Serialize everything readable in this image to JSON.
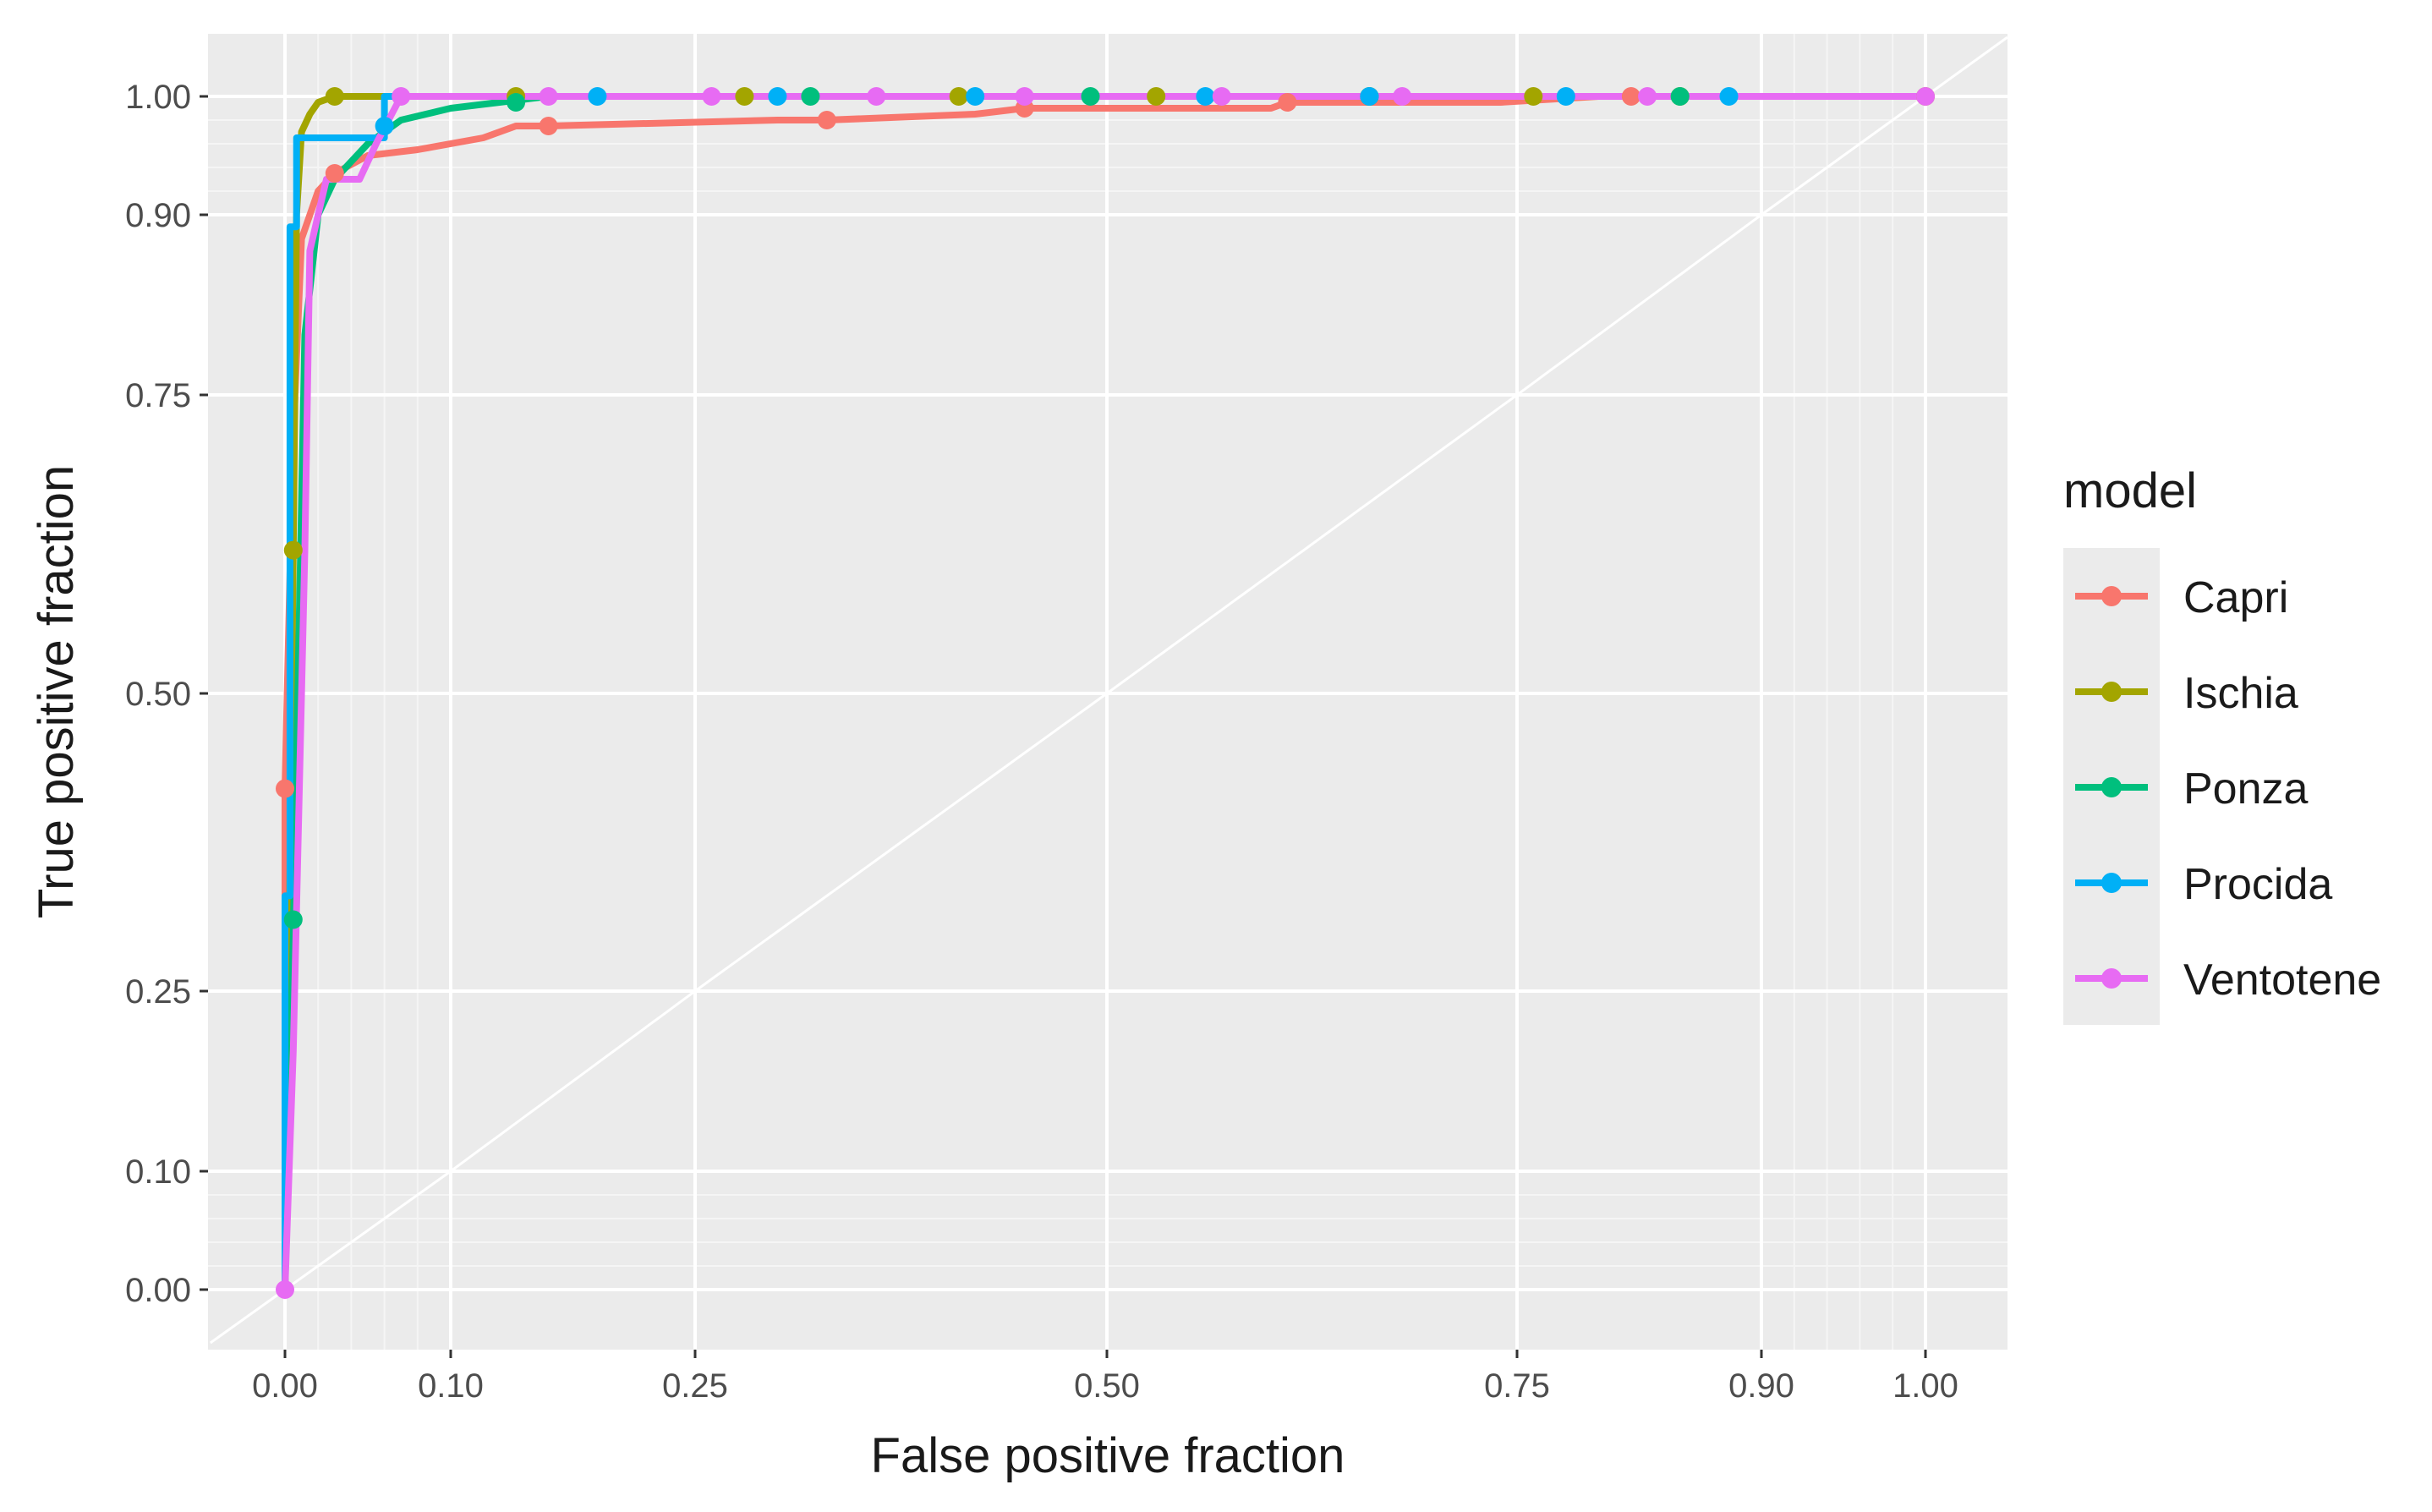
{
  "chart_data": {
    "type": "line",
    "xlabel": "False positive fraction",
    "ylabel": "True positive fraction",
    "xlim": [
      -0.045,
      1.05
    ],
    "ylim": [
      -0.045,
      1.05
    ],
    "axis_scale": "probit-style (breaks dense near 0 and 1)",
    "x_ticks": [
      0.0,
      0.1,
      0.25,
      0.5,
      0.75,
      0.9,
      1.0
    ],
    "x_tick_labels": [
      "0.00",
      "0.10",
      "0.25",
      "0.50",
      "0.75",
      "0.90",
      "1.00"
    ],
    "y_ticks": [
      0.0,
      0.1,
      0.25,
      0.5,
      0.75,
      0.9,
      1.0
    ],
    "y_tick_labels": [
      "0.00",
      "0.10",
      "0.25",
      "0.50",
      "0.75",
      "0.90",
      "1.00"
    ],
    "grid": true,
    "reference_line": "diagonal y = x",
    "legend": {
      "title": "model",
      "position": "right"
    },
    "series": [
      {
        "name": "Capri",
        "color": "#F8766D",
        "x": [
          0.0,
          0.0,
          0.003,
          0.006,
          0.01,
          0.02,
          0.03,
          0.05,
          0.08,
          0.12,
          0.14,
          0.16,
          0.3,
          0.33,
          0.42,
          0.45,
          0.6,
          0.61,
          0.74,
          0.8,
          0.82,
          1.0
        ],
        "y": [
          0.0,
          0.42,
          0.6,
          0.75,
          0.88,
          0.92,
          0.935,
          0.95,
          0.955,
          0.965,
          0.975,
          0.975,
          0.98,
          0.98,
          0.985,
          0.99,
          0.99,
          0.995,
          0.995,
          1.0,
          1.0,
          1.0
        ],
        "points_x": [
          0.0,
          0.03,
          0.16,
          0.33,
          0.45,
          0.61,
          0.82
        ],
        "points_y": [
          0.42,
          0.935,
          0.975,
          0.98,
          0.99,
          0.995,
          1.0
        ]
      },
      {
        "name": "Ischia",
        "color": "#A3A500",
        "x": [
          0.0,
          0.003,
          0.005,
          0.007,
          0.01,
          0.015,
          0.02,
          0.03,
          1.0
        ],
        "y": [
          0.0,
          0.35,
          0.62,
          0.9,
          0.97,
          0.985,
          0.995,
          1.0,
          1.0
        ],
        "points_x": [
          0.005,
          0.03,
          0.14,
          0.28,
          0.41,
          0.53,
          0.66,
          0.76,
          0.85,
          1.0
        ],
        "points_y": [
          0.62,
          1.0,
          1.0,
          1.0,
          1.0,
          1.0,
          1.0,
          1.0,
          1.0,
          1.0
        ]
      },
      {
        "name": "Ponza",
        "color": "#00BF7D",
        "x": [
          0.0,
          0.005,
          0.008,
          0.012,
          0.02,
          0.03,
          0.05,
          0.07,
          0.1,
          0.13,
          0.16,
          1.0
        ],
        "y": [
          0.0,
          0.3,
          0.52,
          0.8,
          0.9,
          0.93,
          0.96,
          0.98,
          0.99,
          0.995,
          1.0,
          1.0
        ],
        "points_x": [
          0.005,
          0.14,
          0.32,
          0.49,
          0.66,
          0.85
        ],
        "points_y": [
          0.31,
          0.995,
          1.0,
          1.0,
          1.0,
          1.0
        ]
      },
      {
        "name": "Procida",
        "color": "#00B0F6",
        "x": [
          0.0,
          0.0,
          0.003,
          0.003,
          0.007,
          0.007,
          0.06,
          0.06,
          1.0
        ],
        "y": [
          0.0,
          0.33,
          0.33,
          0.89,
          0.89,
          0.965,
          0.965,
          1.0,
          1.0
        ],
        "points_x": [
          0.06,
          0.19,
          0.3,
          0.42,
          0.56,
          0.66,
          0.78,
          0.88
        ],
        "points_y": [
          0.975,
          1.0,
          1.0,
          1.0,
          1.0,
          1.0,
          1.0,
          1.0
        ]
      },
      {
        "name": "Ventotene",
        "color": "#E76BF3",
        "x": [
          0.0,
          0.005,
          0.01,
          0.012,
          0.015,
          0.02,
          0.025,
          0.045,
          0.055,
          0.07,
          1.0
        ],
        "y": [
          0.0,
          0.2,
          0.5,
          0.62,
          0.87,
          0.9,
          0.93,
          0.93,
          0.96,
          1.0,
          1.0
        ],
        "points_x": [
          0.0,
          0.07,
          0.16,
          0.26,
          0.36,
          0.45,
          0.57,
          0.68,
          0.83,
          1.0
        ],
        "points_y": [
          0.0,
          1.0,
          1.0,
          1.0,
          1.0,
          1.0,
          1.0,
          1.0,
          1.0,
          1.0
        ]
      }
    ]
  }
}
